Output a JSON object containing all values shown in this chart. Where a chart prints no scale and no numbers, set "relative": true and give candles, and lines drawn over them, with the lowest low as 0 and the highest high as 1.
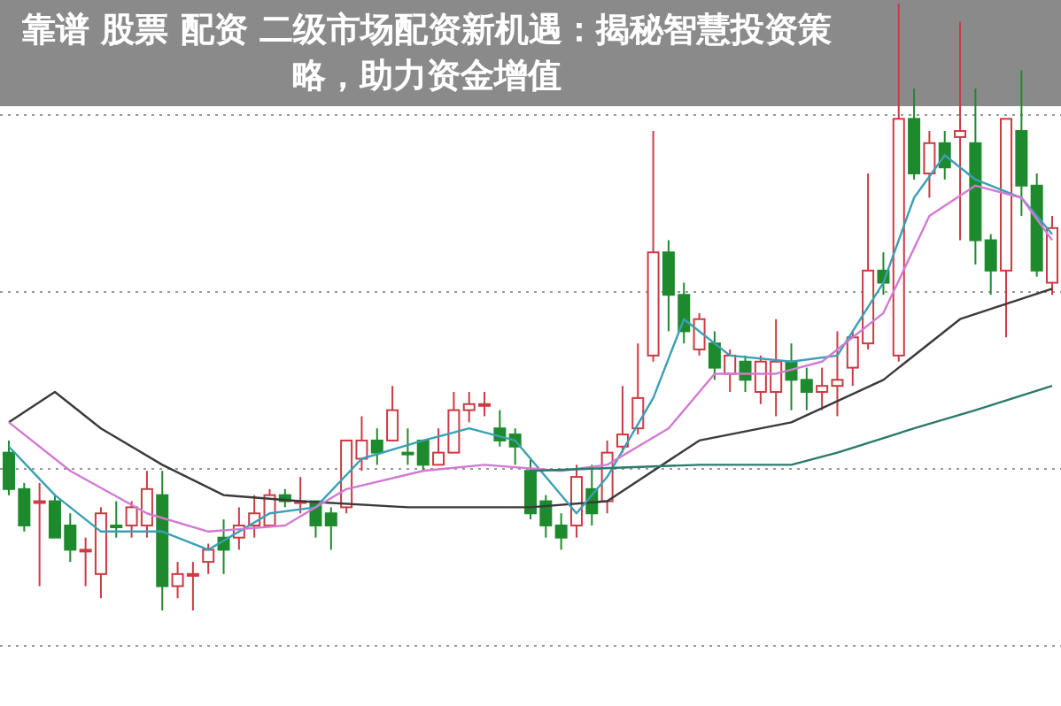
{
  "chart_data": {
    "type": "candlestick",
    "title": "靠谱 股票 配资 二级市场配资新机遇：揭秘智慧投资策略，助力资金增值",
    "relative": true,
    "grid": true,
    "colors": [
      "#1e8a2e",
      "#1e8a2e",
      "#cc3a44",
      "#1e8a2e",
      "#1e8a2e",
      "#cc3a44",
      "#cc3a44",
      "#1e8a2e",
      "#cc3a44",
      "#cc3a44",
      "#1e8a2e",
      "#cc3a44",
      "#cc3a44",
      "#cc3a44",
      "#1e8a2e",
      "#cc3a44",
      "#cc3a44",
      "#cc3a44",
      "#1e8a2e",
      "#cc3a44",
      "#1e8a2e",
      "#1e8a2e",
      "#cc3a44",
      "#cc3a44",
      "#1e8a2e",
      "#cc3a44",
      "#1e8a2e",
      "#1e8a2e",
      "#cc3a44",
      "#cc3a44",
      "#cc3a44",
      "#cc3a44",
      "#1e8a2e",
      "#1e8a2e",
      "#1e8a2e",
      "#1e8a2e",
      "#1e8a2e",
      "#cc3a44",
      "#1e8a2e",
      "#cc3a44",
      "#cc3a44",
      "#cc3a44",
      "#cc3a44",
      "#1e8a2e",
      "#1e8a2e",
      "#cc3a44",
      "#1e8a2e",
      "#cc3a44",
      "#1e8a2e",
      "#cc3a44",
      "#cc3a44",
      "#1e8a2e",
      "#1e8a2e",
      "#cc3a44",
      "#cc3a44",
      "#cc3a44",
      "#cc3a44",
      "#1e8a2e",
      "#cc3a44",
      "#1e8a2e",
      "#cc3a44",
      "#1e8a2e",
      "#cc3a44",
      "#1e8a2e",
      "#1e8a2e",
      "#cc3a44",
      "#1e8a2e",
      "#1e8a2e",
      "#cc3a44"
    ],
    "categories": [
      null,
      null,
      null,
      null,
      null,
      null,
      null,
      null,
      null,
      null,
      null,
      null,
      null,
      null,
      null,
      null,
      null,
      null,
      null,
      null,
      null,
      null,
      null,
      null,
      null,
      null,
      null,
      null,
      null,
      null,
      null,
      null,
      null,
      null,
      null,
      null,
      null,
      null,
      null,
      null,
      null,
      null,
      null,
      null,
      null,
      null,
      null,
      null,
      null,
      null,
      null,
      null,
      null,
      null,
      null,
      null,
      null,
      null,
      null,
      null,
      null,
      null,
      null,
      null,
      null,
      null,
      null,
      null,
      null
    ],
    "ohlc": [
      [
        0.26,
        0.28,
        0.19,
        0.2
      ],
      [
        0.2,
        0.21,
        0.13,
        0.14
      ],
      [
        0.18,
        0.21,
        0.04,
        0.18
      ],
      [
        0.18,
        0.19,
        0.12,
        0.12
      ],
      [
        0.14,
        0.16,
        0.08,
        0.1
      ],
      [
        0.1,
        0.12,
        0.04,
        0.1
      ],
      [
        0.06,
        0.17,
        0.02,
        0.16
      ],
      [
        0.14,
        0.18,
        0.12,
        0.14
      ],
      [
        0.14,
        0.18,
        0.12,
        0.17
      ],
      [
        0.14,
        0.23,
        0.12,
        0.2
      ],
      [
        0.19,
        0.23,
        0,
        0.04
      ],
      [
        0.04,
        0.08,
        0.02,
        0.06
      ],
      [
        0.06,
        0.08,
        0,
        0.06
      ],
      [
        0.08,
        0.11,
        0.06,
        0.1
      ],
      [
        0.12,
        0.15,
        0.06,
        0.1
      ],
      [
        0.12,
        0.17,
        0.1,
        0.14
      ],
      [
        0.14,
        0.19,
        0.12,
        0.16
      ],
      [
        0.14,
        0.2,
        0.14,
        0.19
      ],
      [
        0.19,
        0.2,
        0.17,
        0.18
      ],
      [
        0.18,
        0.22,
        0.16,
        0.18
      ],
      [
        0.18,
        0.18,
        0.12,
        0.14
      ],
      [
        0.16,
        0.17,
        0.1,
        0.14
      ],
      [
        0.17,
        0.28,
        0.16,
        0.28
      ],
      [
        0.25,
        0.32,
        0.23,
        0.28
      ],
      [
        0.28,
        0.3,
        0.24,
        0.26
      ],
      [
        0.28,
        0.37,
        0.28,
        0.33
      ],
      [
        0.26,
        0.3,
        0.24,
        0.26
      ],
      [
        0.28,
        0.28,
        0.23,
        0.24
      ],
      [
        0.24,
        0.3,
        0.24,
        0.26
      ],
      [
        0.26,
        0.36,
        0.26,
        0.33
      ],
      [
        0.33,
        0.36,
        0.31,
        0.34
      ],
      [
        0.34,
        0.36,
        0.32,
        0.34
      ],
      [
        0.3,
        0.33,
        0.27,
        0.28
      ],
      [
        0.29,
        0.3,
        0.24,
        0.27
      ],
      [
        0.23,
        0.25,
        0.15,
        0.16
      ],
      [
        0.18,
        0.19,
        0.12,
        0.14
      ],
      [
        0.14,
        0.16,
        0.1,
        0.12
      ],
      [
        0.14,
        0.24,
        0.12,
        0.22
      ],
      [
        0.2,
        0.24,
        0.14,
        0.16
      ],
      [
        0.18,
        0.28,
        0.16,
        0.26
      ],
      [
        0.27,
        0.37,
        0.26,
        0.29
      ],
      [
        0.3,
        0.44,
        0.29,
        0.35
      ],
      [
        0.42,
        0.79,
        0.41,
        0.59
      ],
      [
        0.59,
        0.61,
        0.46,
        0.52
      ],
      [
        0.52,
        0.54,
        0.44,
        0.46
      ],
      [
        0.43,
        0.49,
        0.42,
        0.48
      ],
      [
        0.44,
        0.46,
        0.38,
        0.4
      ],
      [
        0.39,
        0.43,
        0.36,
        0.42
      ],
      [
        0.41,
        0.42,
        0.36,
        0.38
      ],
      [
        0.36,
        0.42,
        0.34,
        0.41
      ],
      [
        0.36,
        0.48,
        0.32,
        0.41
      ],
      [
        0.41,
        0.44,
        0.33,
        0.38
      ],
      [
        0.38,
        0.4,
        0.33,
        0.36
      ],
      [
        0.36,
        0.4,
        0.33,
        0.37
      ],
      [
        0.37,
        0.46,
        0.32,
        0.38
      ],
      [
        0.4,
        0.46,
        0.37,
        0.45
      ],
      [
        0.44,
        0.72,
        0.43,
        0.56
      ],
      [
        0.56,
        0.59,
        0.52,
        0.54
      ],
      [
        0.42,
        1,
        0.41,
        0.81
      ],
      [
        0.81,
        0.86,
        0.71,
        0.72
      ],
      [
        0.72,
        0.79,
        0.68,
        0.77
      ],
      [
        0.77,
        0.79,
        0.71,
        0.73
      ],
      [
        0.78,
        0.97,
        0.61,
        0.79
      ],
      [
        0.77,
        0.86,
        0.57,
        0.61
      ],
      [
        0.61,
        0.62,
        0.52,
        0.56
      ],
      [
        0.56,
        0.81,
        0.45,
        0.81
      ],
      [
        0.79,
        0.89,
        0.65,
        0.7
      ],
      [
        0.7,
        0.72,
        0.55,
        0.56
      ],
      [
        0.54,
        0.65,
        0.52,
        0.63
      ]
    ],
    "series": [
      {
        "type": "line",
        "color": "#3a3a3a",
        "values": [
          0.31,
          null,
          null,
          0.36,
          null,
          null,
          0.3,
          null,
          null,
          null,
          0.24,
          null,
          null,
          null,
          0.19,
          null,
          null,
          null,
          null,
          0.18,
          null,
          null,
          null,
          null,
          null,
          null,
          0.17,
          null,
          null,
          null,
          null,
          null,
          null,
          null,
          0.17,
          null,
          null,
          null,
          null,
          0.18,
          null,
          null,
          null,
          null,
          null,
          0.28,
          null,
          null,
          null,
          null,
          null,
          0.31,
          null,
          null,
          null,
          null,
          null,
          0.38,
          null,
          null,
          null,
          null,
          0.48,
          null,
          null,
          null,
          null,
          null,
          0.53
        ]
      },
      {
        "type": "line",
        "color": "#3aa0b4",
        "values": [
          0.27,
          null,
          null,
          0.19,
          null,
          null,
          0.13,
          null,
          null,
          null,
          0.13,
          null,
          null,
          0.1,
          null,
          null,
          null,
          0.16,
          null,
          null,
          0.17,
          null,
          null,
          0.25,
          null,
          null,
          null,
          0.28,
          null,
          null,
          0.3,
          null,
          null,
          0.28,
          null,
          0.22,
          null,
          0.16,
          null,
          0.22,
          null,
          null,
          0.35,
          null,
          0.48,
          null,
          null,
          0.42,
          null,
          null,
          null,
          0.41,
          null,
          null,
          0.42,
          null,
          null,
          0.54,
          null,
          0.68,
          null,
          0.75,
          null,
          0.71,
          null,
          null,
          0.68,
          null,
          0.62
        ]
      },
      {
        "type": "line",
        "color": "#d27ad2",
        "values": [
          0.31,
          null,
          null,
          null,
          0.23,
          null,
          null,
          null,
          null,
          0.16,
          null,
          null,
          null,
          0.13,
          null,
          null,
          null,
          null,
          0.14,
          null,
          null,
          null,
          0.2,
          null,
          null,
          null,
          null,
          0.23,
          null,
          null,
          null,
          0.24,
          null,
          null,
          null,
          null,
          0.23,
          null,
          null,
          0.24,
          null,
          null,
          null,
          0.3,
          null,
          null,
          0.39,
          null,
          null,
          null,
          0.39,
          null,
          null,
          0.41,
          null,
          null,
          null,
          0.49,
          null,
          null,
          0.65,
          null,
          null,
          0.7,
          null,
          null,
          0.68,
          null,
          0.61
        ]
      },
      {
        "type": "line",
        "color": "#2a7a6a",
        "values": [
          null,
          null,
          null,
          null,
          null,
          null,
          null,
          null,
          null,
          null,
          null,
          null,
          null,
          null,
          null,
          null,
          null,
          null,
          null,
          null,
          null,
          null,
          null,
          null,
          null,
          null,
          null,
          null,
          null,
          null,
          null,
          null,
          null,
          null,
          0.23,
          null,
          null,
          null,
          null,
          null,
          null,
          null,
          null,
          null,
          null,
          0.24,
          null,
          null,
          null,
          null,
          null,
          0.24,
          null,
          null,
          0.26,
          null,
          null,
          null,
          null,
          0.3,
          null,
          null,
          null,
          0.33,
          null,
          null,
          null,
          null,
          0.37
        ]
      }
    ]
  }
}
